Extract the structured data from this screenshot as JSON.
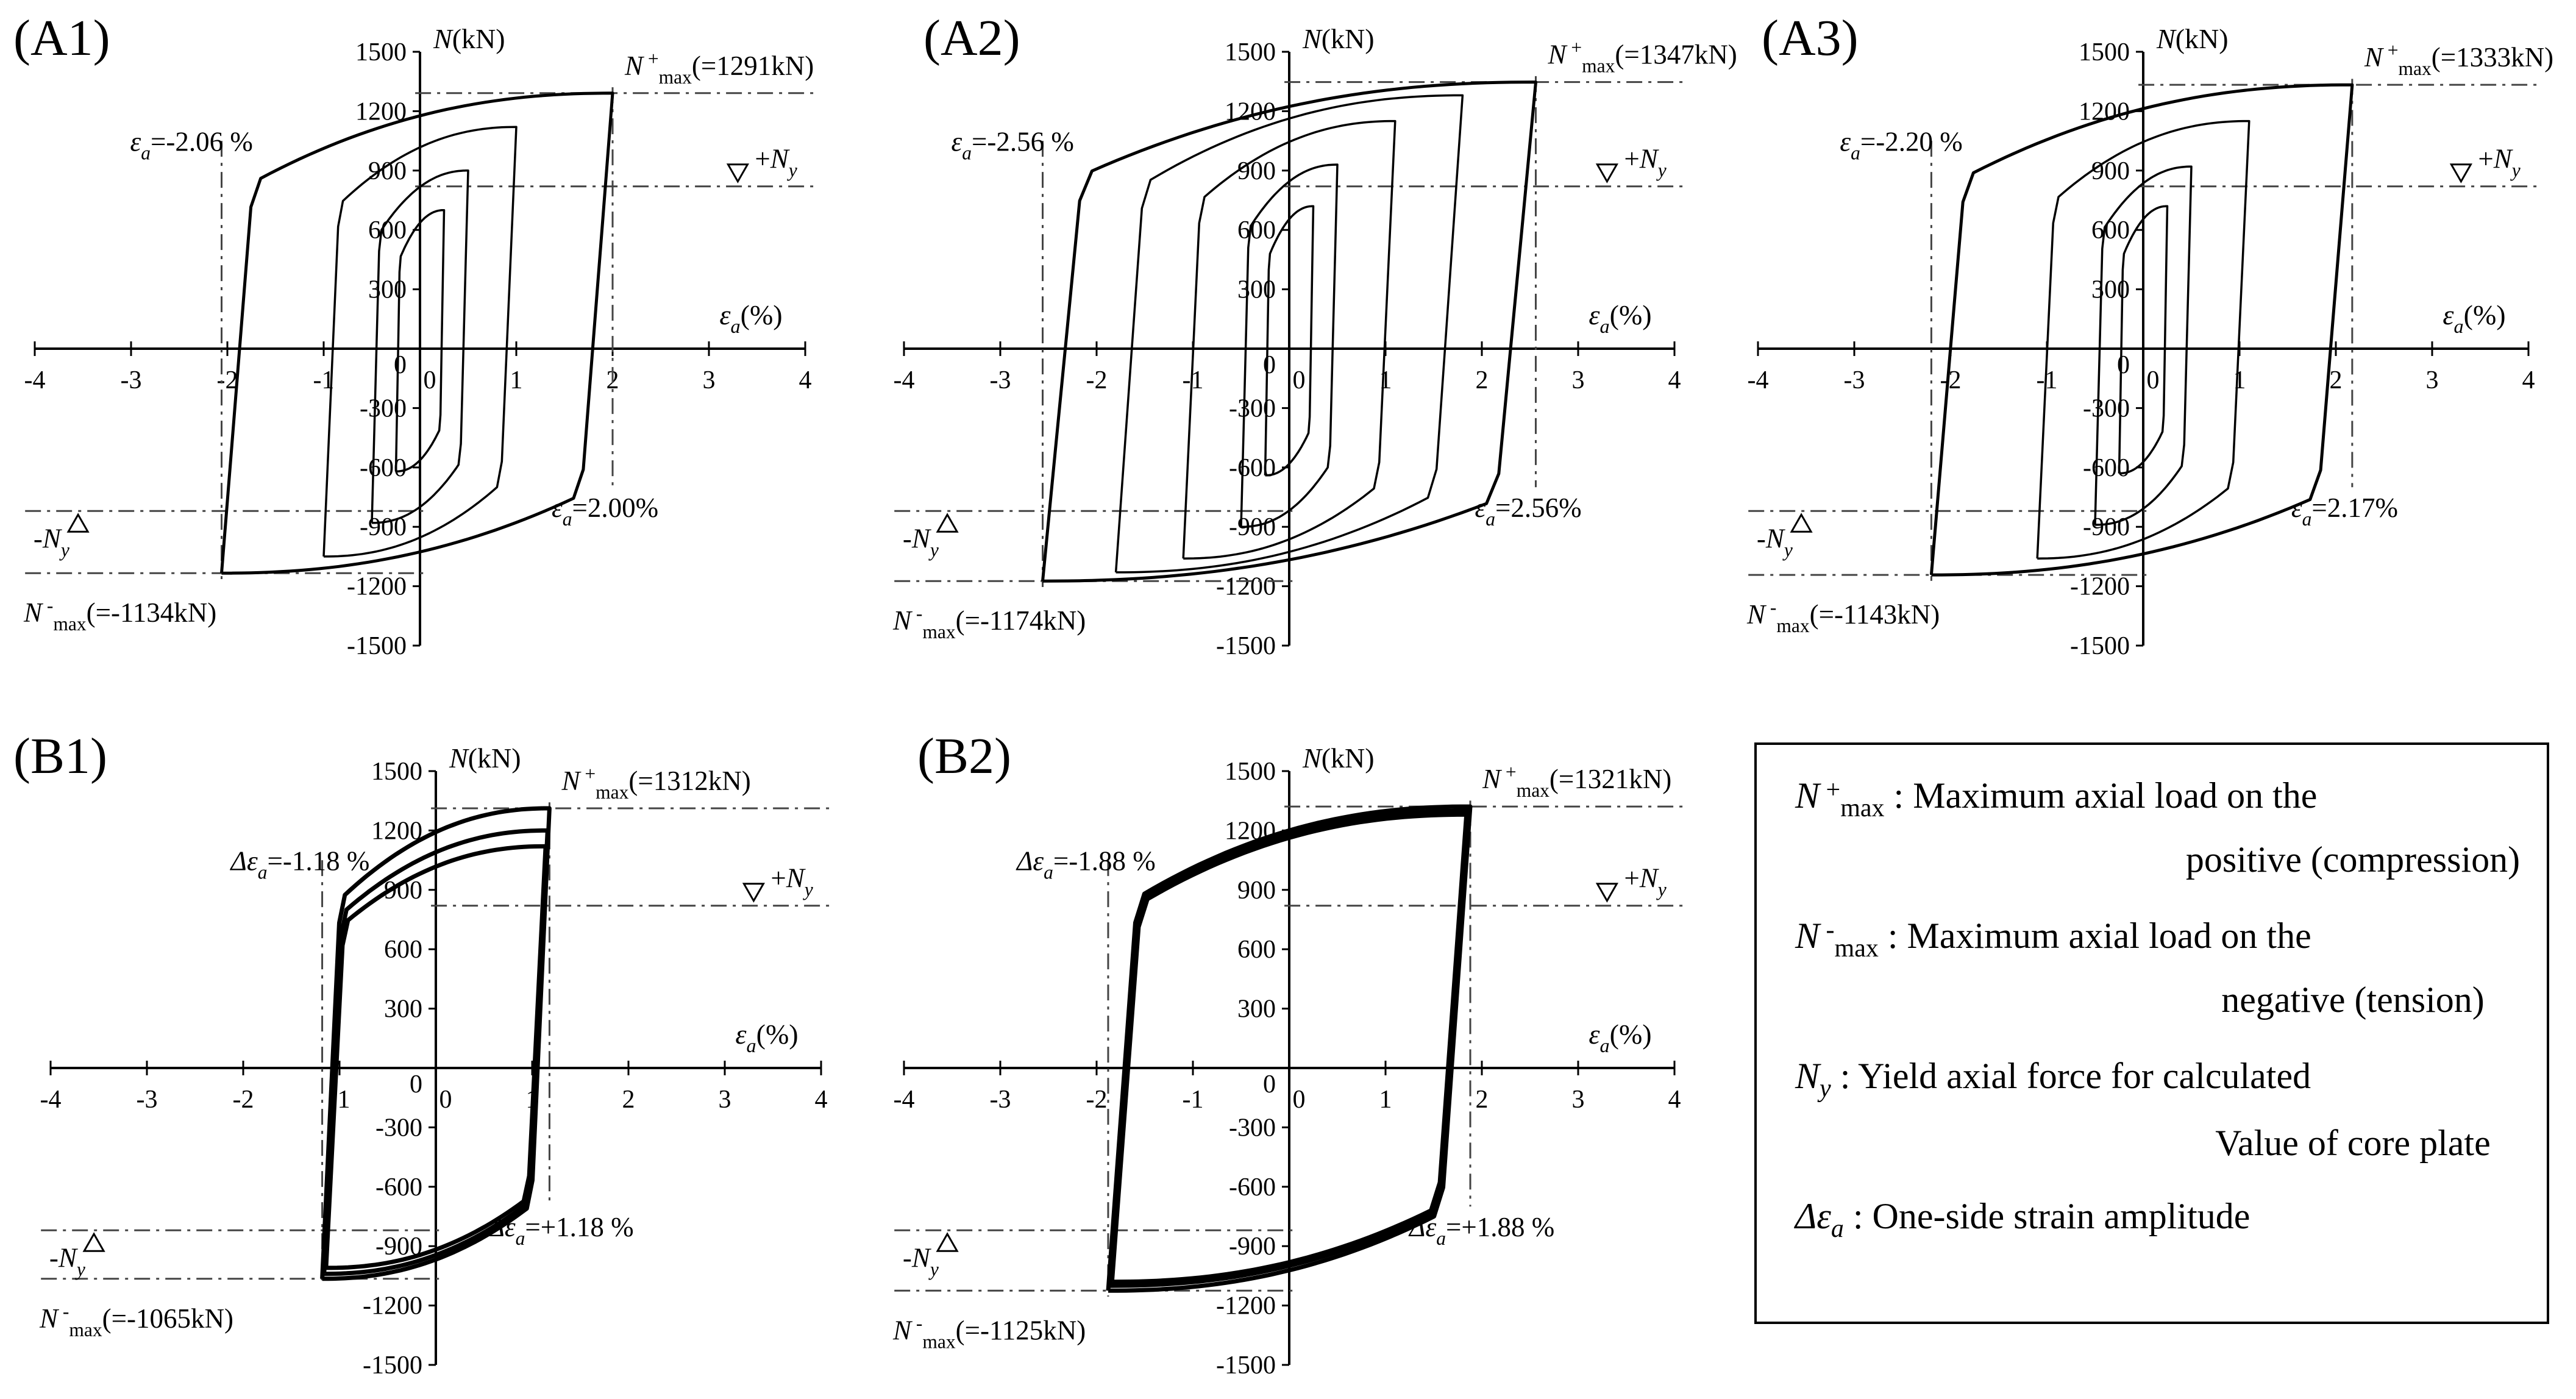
{
  "figure": {
    "legend": {
      "items": [
        {
          "sym": "N",
          "sup": "+",
          "sub": "max",
          "line1": " : Maximum axial load on the",
          "line2": "positive (compression)"
        },
        {
          "sym": "N",
          "sup": "-",
          "sub": "max",
          "line1": " : Maximum axial load on the",
          "line2": "negative (tension)"
        },
        {
          "sym": "N",
          "sup": "",
          "sub": "y",
          "line1": " : Yield axial force for calculated",
          "line2": "Value of core plate"
        },
        {
          "sym": "Δε",
          "sup": "",
          "sub": "a",
          "line1": " : One-side strain amplitude",
          "line2": ""
        }
      ]
    }
  },
  "chart_data": [
    {
      "id": "A1",
      "type": "line",
      "title": "(A1)",
      "xlabel": "εa(%)",
      "ylabel": "N(kN)",
      "xlim": [
        -4,
        4
      ],
      "ylim": [
        -1500,
        1500
      ],
      "xticks": [
        -4,
        -3,
        -2,
        -1,
        0,
        1,
        2,
        3,
        4
      ],
      "yticks": [
        1500,
        1200,
        900,
        600,
        300,
        0,
        -300,
        -600,
        -900,
        -1200,
        -1500
      ],
      "ny": 820,
      "nmax_pos": {
        "x": 2.0,
        "y": 1291,
        "label": "N+max(=1291kN)"
      },
      "nmax_neg": {
        "x": -2.06,
        "y": -1134,
        "label": "N-max(=-1134kN)"
      },
      "eps_neg": {
        "x": -2.06,
        "label": "εa=-2.06 %"
      },
      "eps_pos": {
        "x": 2.0,
        "label": "εa=2.00%"
      },
      "ny_pos_label": "+Ny",
      "ny_neg_label": "-Ny",
      "loops": [
        {
          "amp_neg": 0.25,
          "amp_pos": 0.25,
          "top": 700,
          "bot": -620
        },
        {
          "amp_neg": 0.5,
          "amp_pos": 0.5,
          "top": 900,
          "bot": -880
        },
        {
          "amp_neg": 1.0,
          "amp_pos": 1.0,
          "top": 1120,
          "bot": -1050
        },
        {
          "amp_neg": 2.06,
          "amp_pos": 2.0,
          "top": 1291,
          "bot": -1134
        }
      ]
    },
    {
      "id": "A2",
      "type": "line",
      "title": "(A2)",
      "xlabel": "εa(%)",
      "ylabel": "N(kN)",
      "xlim": [
        -4,
        4
      ],
      "ylim": [
        -1500,
        1500
      ],
      "xticks": [
        -4,
        -3,
        -2,
        -1,
        0,
        1,
        2,
        3,
        4
      ],
      "yticks": [
        1500,
        1200,
        900,
        600,
        300,
        0,
        -300,
        -600,
        -900,
        -1200,
        -1500
      ],
      "ny": 820,
      "nmax_pos": {
        "x": 2.56,
        "y": 1347,
        "label": "N+max(=1347kN)"
      },
      "nmax_neg": {
        "x": -2.56,
        "y": -1174,
        "label": "N-max(=-1174kN)"
      },
      "eps_neg": {
        "x": -2.56,
        "label": "εa=-2.56 %"
      },
      "eps_pos": {
        "x": 2.56,
        "label": "εa=2.56%"
      },
      "ny_pos_label": "+Ny",
      "ny_neg_label": "-Ny",
      "loops": [
        {
          "amp_neg": 0.25,
          "amp_pos": 0.25,
          "top": 720,
          "bot": -640
        },
        {
          "amp_neg": 0.5,
          "amp_pos": 0.5,
          "top": 930,
          "bot": -900
        },
        {
          "amp_neg": 1.1,
          "amp_pos": 1.1,
          "top": 1150,
          "bot": -1060
        },
        {
          "amp_neg": 1.8,
          "amp_pos": 1.8,
          "top": 1280,
          "bot": -1130
        },
        {
          "amp_neg": 2.56,
          "amp_pos": 2.56,
          "top": 1347,
          "bot": -1174
        }
      ]
    },
    {
      "id": "A3",
      "type": "line",
      "title": "(A3)",
      "xlabel": "εa(%)",
      "ylabel": "N(kN)",
      "xlim": [
        -4,
        4
      ],
      "ylim": [
        -1500,
        1500
      ],
      "xticks": [
        -4,
        -3,
        -2,
        -1,
        0,
        1,
        2,
        3,
        4
      ],
      "yticks": [
        1500,
        1200,
        900,
        600,
        300,
        0,
        -300,
        -600,
        -900,
        -1200,
        -1500
      ],
      "ny": 820,
      "nmax_pos": {
        "x": 2.17,
        "y": 1333,
        "label": "N+max(=1333kN)"
      },
      "nmax_neg": {
        "x": -2.2,
        "y": -1143,
        "label": "N-max(=-1143kN)"
      },
      "eps_neg": {
        "x": -2.2,
        "label": "εa=-2.20 %"
      },
      "eps_pos": {
        "x": 2.17,
        "label": "εa=2.17%"
      },
      "ny_pos_label": "+Ny",
      "ny_neg_label": "-Ny",
      "loops": [
        {
          "amp_neg": 0.25,
          "amp_pos": 0.25,
          "top": 720,
          "bot": -630
        },
        {
          "amp_neg": 0.5,
          "amp_pos": 0.5,
          "top": 920,
          "bot": -890
        },
        {
          "amp_neg": 1.1,
          "amp_pos": 1.1,
          "top": 1150,
          "bot": -1060
        },
        {
          "amp_neg": 2.2,
          "amp_pos": 2.17,
          "top": 1333,
          "bot": -1143
        }
      ]
    },
    {
      "id": "B1",
      "type": "line",
      "title": "(B1)",
      "xlabel": "εa(%)",
      "ylabel": "N(kN)",
      "xlim": [
        -4,
        4
      ],
      "ylim": [
        -1500,
        1500
      ],
      "xticks": [
        -4,
        -3,
        -2,
        -1,
        0,
        1,
        2,
        3,
        4
      ],
      "yticks": [
        1500,
        1200,
        900,
        600,
        300,
        0,
        -300,
        -600,
        -900,
        -1200,
        -1500
      ],
      "ny": 820,
      "nmax_pos": {
        "x": 1.18,
        "y": 1312,
        "label": "N+max(=1312kN)"
      },
      "nmax_neg": {
        "x": -1.18,
        "y": -1065,
        "label": "N-max(=-1065kN)"
      },
      "eps_neg": {
        "x": -1.18,
        "label": "Δεa=-1.18 %"
      },
      "eps_pos": {
        "x": 1.18,
        "label": "Δεa=+1.18 %"
      },
      "ny_pos_label": "+Ny",
      "ny_neg_label": "-Ny",
      "loops": [
        {
          "amp_neg": 1.18,
          "amp_pos": 1.18,
          "top": 1312,
          "bot": -1065
        },
        {
          "amp_neg": 1.16,
          "amp_pos": 1.16,
          "top": 1200,
          "bot": -1040
        },
        {
          "amp_neg": 1.14,
          "amp_pos": 1.14,
          "top": 1120,
          "bot": -1010
        }
      ]
    },
    {
      "id": "B2",
      "type": "line",
      "title": "(B2)",
      "xlabel": "εa(%)",
      "ylabel": "N(kN)",
      "xlim": [
        -4,
        4
      ],
      "ylim": [
        -1500,
        1500
      ],
      "xticks": [
        -4,
        -3,
        -2,
        -1,
        0,
        1,
        2,
        3,
        4
      ],
      "yticks": [
        1500,
        1200,
        900,
        600,
        300,
        0,
        -300,
        -600,
        -900,
        -1200,
        -1500
      ],
      "ny": 820,
      "nmax_pos": {
        "x": 1.88,
        "y": 1321,
        "label": "N+max(=1321kN)"
      },
      "nmax_neg": {
        "x": -1.88,
        "y": -1125,
        "label": "N-max(=-1125kN)"
      },
      "eps_neg": {
        "x": -1.88,
        "label": "Δεa=-1.88 %"
      },
      "eps_pos": {
        "x": 1.88,
        "label": "Δεa=+1.88 %"
      },
      "ny_pos_label": "+Ny",
      "ny_neg_label": "-Ny",
      "loops": [
        {
          "amp_neg": 1.88,
          "amp_pos": 1.88,
          "top": 1321,
          "bot": -1125
        },
        {
          "amp_neg": 1.86,
          "amp_pos": 1.86,
          "top": 1300,
          "bot": -1100
        },
        {
          "amp_neg": 1.84,
          "amp_pos": 1.84,
          "top": 1280,
          "bot": -1080
        }
      ]
    }
  ]
}
